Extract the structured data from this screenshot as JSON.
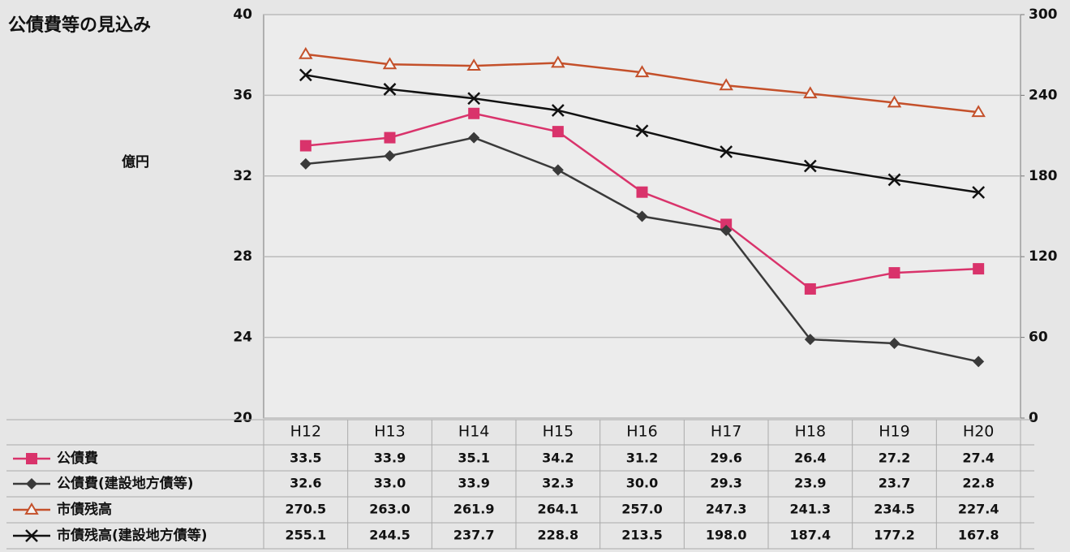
{
  "chart_data": {
    "type": "line",
    "title": "公債費等の見込み",
    "ylabel": "億円",
    "categories": [
      "H12",
      "H13",
      "H14",
      "H15",
      "H16",
      "H17",
      "H18",
      "H19",
      "H20"
    ],
    "ylim": [
      20,
      40
    ],
    "yticks": [
      20,
      24,
      28,
      32,
      36,
      40
    ],
    "y2lim": [
      0,
      300
    ],
    "y2ticks": [
      0,
      60,
      120,
      180,
      240,
      300
    ],
    "grid": true,
    "series": [
      {
        "name": "公債費",
        "color": "#d9336b",
        "marker": "square",
        "values": [
          33.5,
          33.9,
          35.1,
          34.2,
          31.2,
          29.6,
          26.4,
          27.2,
          27.4
        ],
        "value_labels": [
          "33.5",
          "33.9",
          "35.1",
          "34.2",
          "31.2",
          "29.6",
          "26.4",
          "27.2",
          "27.4"
        ]
      },
      {
        "name": "公債費(建設地方債等)",
        "color": "#3a3a3a",
        "marker": "diamond",
        "values": [
          32.6,
          33.0,
          33.9,
          32.3,
          30.0,
          29.3,
          23.9,
          23.7,
          22.8
        ],
        "value_labels": [
          "32.6",
          "33.0",
          "33.9",
          "32.3",
          "30.0",
          "29.3",
          "23.9",
          "23.7",
          "22.8"
        ]
      },
      {
        "name": "市債残高",
        "color": "#c4502a",
        "marker": "triangle",
        "axis": "y2",
        "values": [
          270.5,
          263.0,
          261.9,
          264.1,
          257.0,
          247.3,
          241.3,
          234.5,
          227.4
        ],
        "value_labels": [
          "270.5",
          "263.0",
          "261.9",
          "264.1",
          "257.0",
          "247.3",
          "241.3",
          "234.5",
          "227.4"
        ]
      },
      {
        "name": "市債残高(建設地方債等)",
        "color": "#111111",
        "marker": "x",
        "axis": "y2",
        "values": [
          255.1,
          244.5,
          237.7,
          228.8,
          213.5,
          198.0,
          187.4,
          177.2,
          167.8
        ],
        "value_labels": [
          "255.1",
          "244.5",
          "237.7",
          "228.8",
          "213.5",
          "198.0",
          "187.4",
          "177.2",
          "167.8"
        ]
      }
    ]
  }
}
